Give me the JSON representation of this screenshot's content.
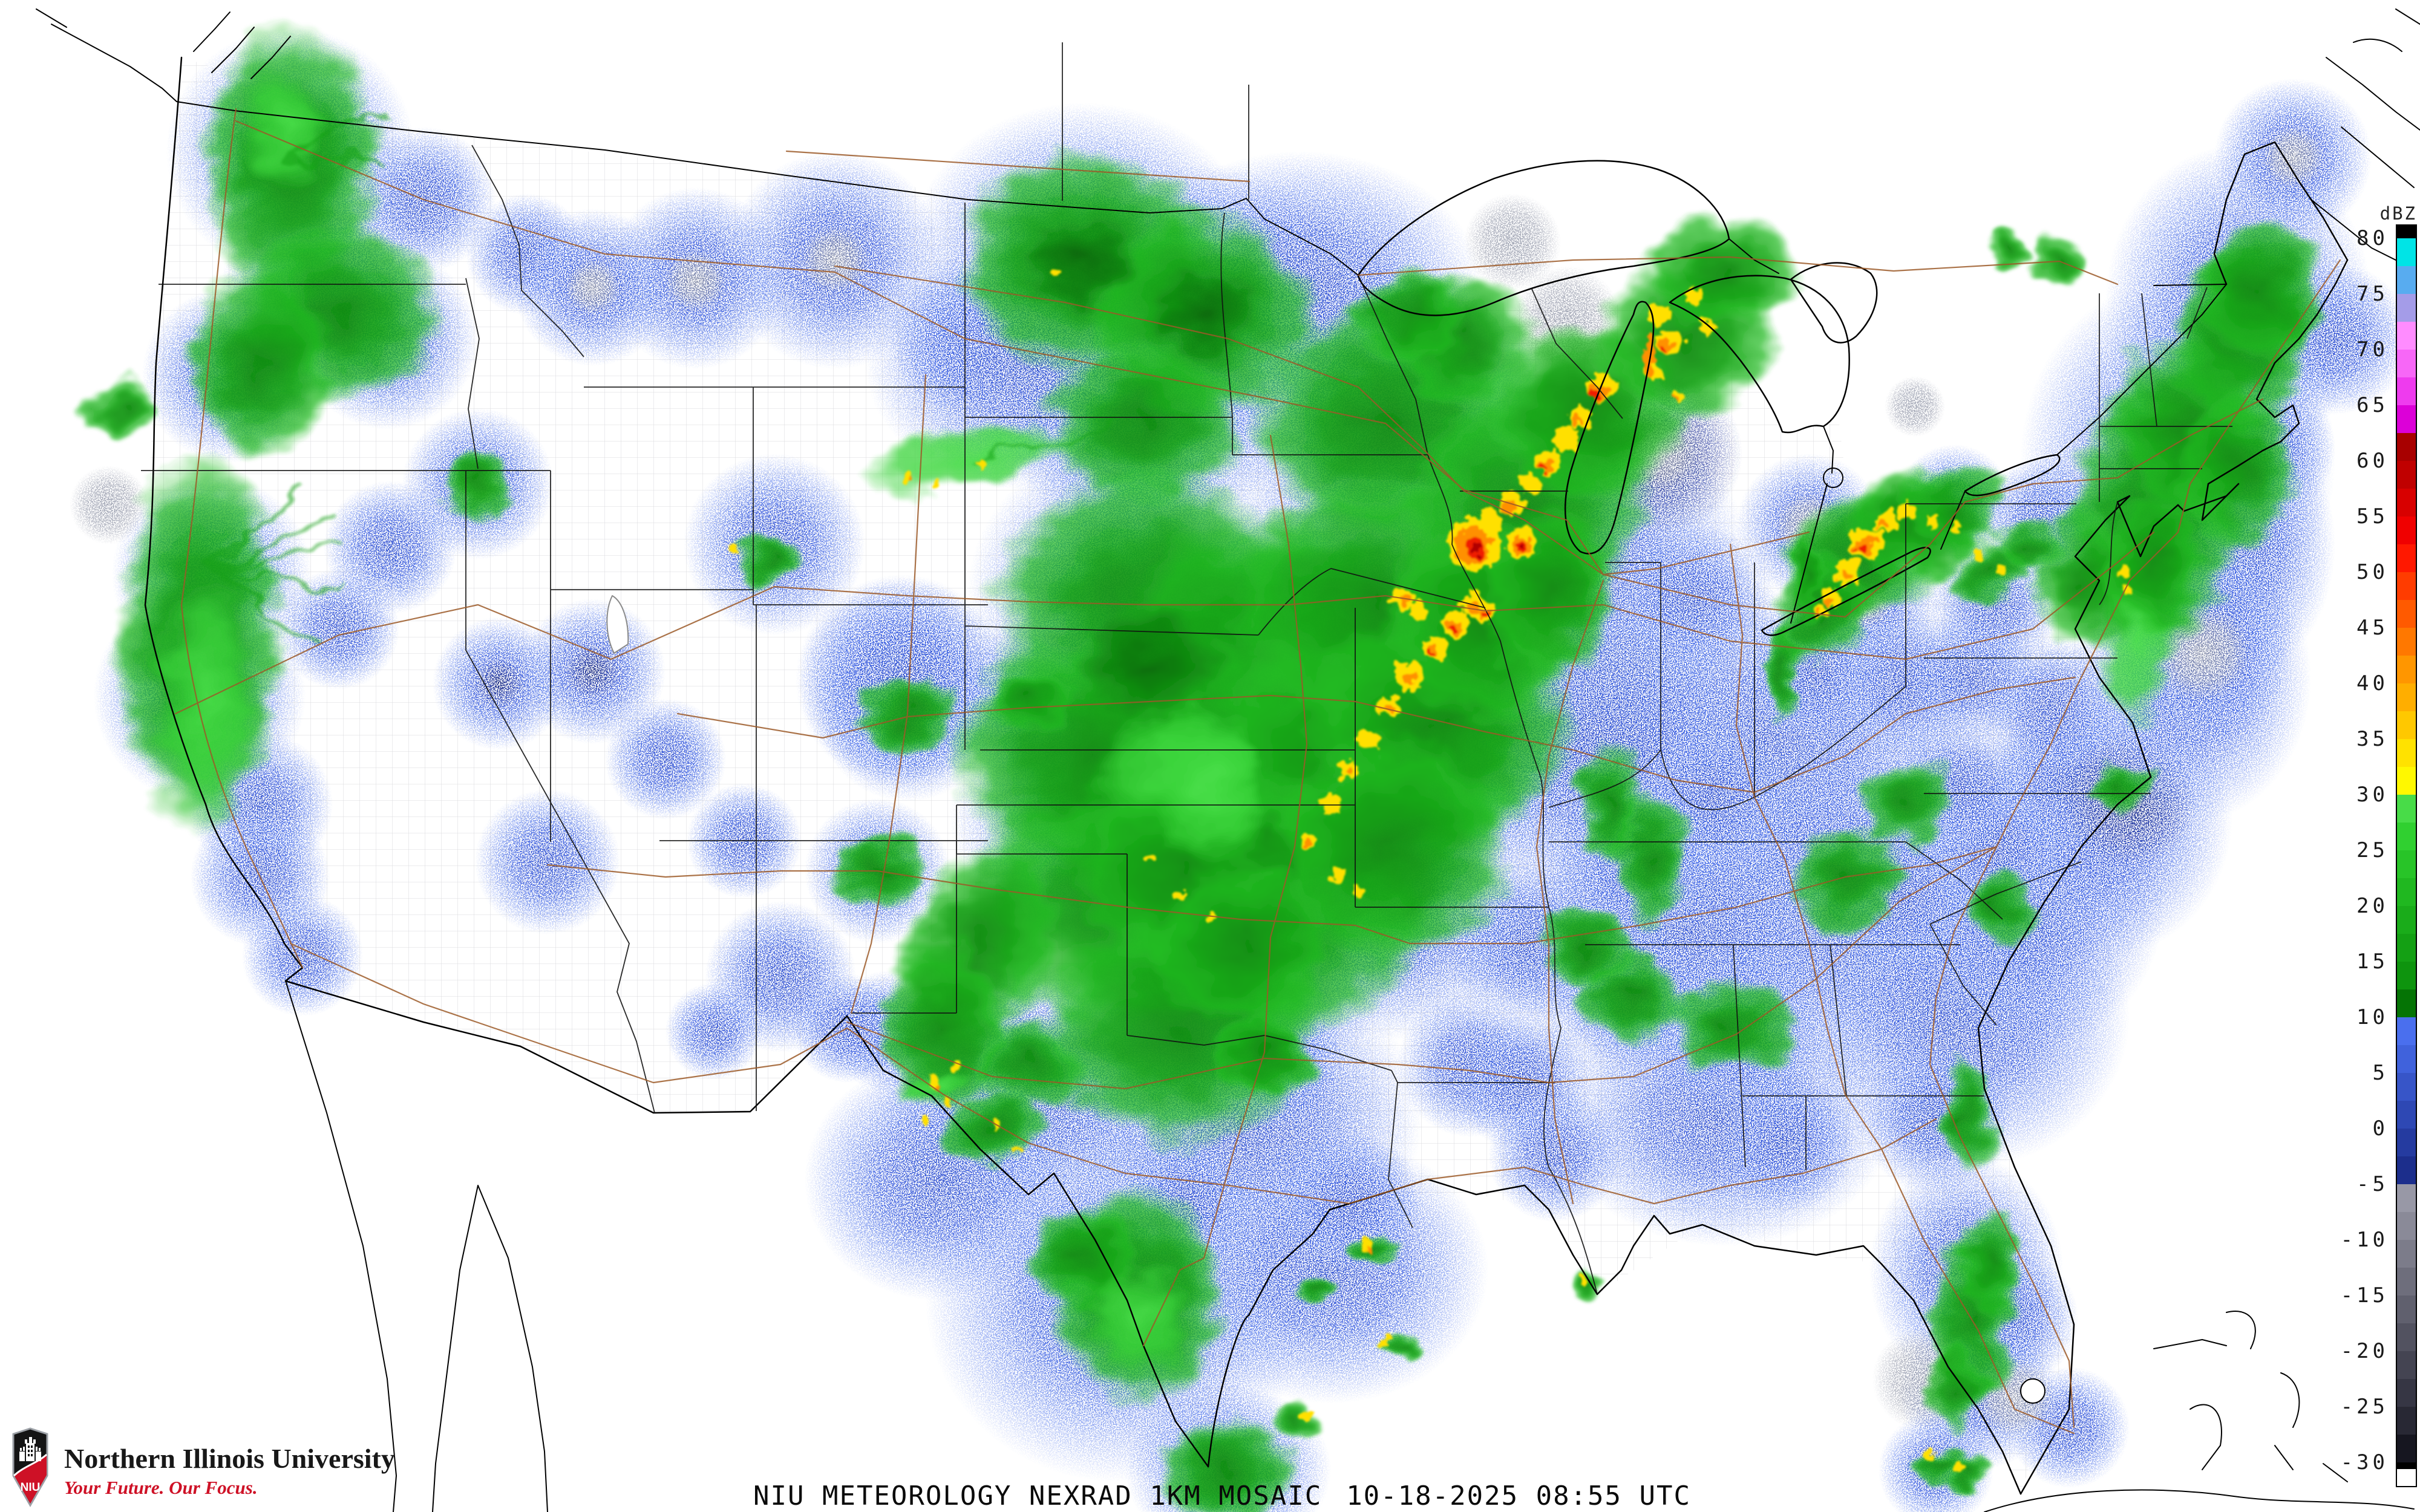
{
  "app": {
    "title": "NIU Meteorology NEXRAD 1KM Mosaic"
  },
  "caption": {
    "product": "NIU METEOROLOGY NEXRAD 1KM MOSAIC",
    "datetime": "10-18-2025 08:55 UTC"
  },
  "branding": {
    "university": "Northern Illinois University",
    "tagline": "Your Future. Our Focus.",
    "monogram": "NIU",
    "brand_red": "#CE1126"
  },
  "colorbar": {
    "unit": "dBZ",
    "ticks": [
      80,
      75,
      70,
      65,
      60,
      55,
      50,
      45,
      40,
      35,
      30,
      25,
      20,
      15,
      10,
      5,
      0,
      -5,
      -10,
      -15,
      -20,
      -25,
      -30
    ],
    "segments": [
      {
        "f": 81.2,
        "t": 80,
        "c": "#000000"
      },
      {
        "f": 80,
        "t": 77.5,
        "c": "#00E4E6"
      },
      {
        "f": 77.5,
        "t": 75,
        "c": "#58ACF0"
      },
      {
        "f": 75,
        "t": 72.5,
        "c": "#A49CE8"
      },
      {
        "f": 72.5,
        "t": 70,
        "c": "#FF8CFF"
      },
      {
        "f": 70,
        "t": 67.5,
        "c": "#F767F7"
      },
      {
        "f": 67.5,
        "t": 65,
        "c": "#EE3BEE"
      },
      {
        "f": 65,
        "t": 62.5,
        "c": "#DC00D8"
      },
      {
        "f": 62.5,
        "t": 60,
        "c": "#A80000"
      },
      {
        "f": 60,
        "t": 57.5,
        "c": "#C00000"
      },
      {
        "f": 57.5,
        "t": 55,
        "c": "#D80000"
      },
      {
        "f": 55,
        "t": 52.5,
        "c": "#F00000"
      },
      {
        "f": 52.5,
        "t": 50,
        "c": "#FF1800"
      },
      {
        "f": 50,
        "t": 47.5,
        "c": "#FF3C00"
      },
      {
        "f": 47.5,
        "t": 45,
        "c": "#FF5A00"
      },
      {
        "f": 45,
        "t": 42.5,
        "c": "#FF7800"
      },
      {
        "f": 42.5,
        "t": 40,
        "c": "#FF9600"
      },
      {
        "f": 40,
        "t": 37.5,
        "c": "#FFAE00"
      },
      {
        "f": 37.5,
        "t": 35,
        "c": "#FFC800"
      },
      {
        "f": 35,
        "t": 32.5,
        "c": "#FFE200"
      },
      {
        "f": 32.5,
        "t": 30,
        "c": "#FFF800"
      },
      {
        "f": 30,
        "t": 27.5,
        "c": "#48DC48"
      },
      {
        "f": 27.5,
        "t": 25,
        "c": "#30D030"
      },
      {
        "f": 25,
        "t": 22.5,
        "c": "#28C428"
      },
      {
        "f": 22.5,
        "t": 20,
        "c": "#20B820"
      },
      {
        "f": 20,
        "t": 17.5,
        "c": "#1AAC1A"
      },
      {
        "f": 17.5,
        "t": 15,
        "c": "#14A014"
      },
      {
        "f": 15,
        "t": 12.5,
        "c": "#0E940E"
      },
      {
        "f": 12.5,
        "t": 10,
        "c": "#057405"
      },
      {
        "f": 10,
        "t": 7.5,
        "c": "#4A6FEE"
      },
      {
        "f": 7.5,
        "t": 5,
        "c": "#4062DC"
      },
      {
        "f": 5,
        "t": 2.5,
        "c": "#3755C8"
      },
      {
        "f": 2.5,
        "t": 0,
        "c": "#2E48B4"
      },
      {
        "f": 0,
        "t": -2.5,
        "c": "#253BA0"
      },
      {
        "f": -2.5,
        "t": -5,
        "c": "#1C2E8C"
      },
      {
        "f": -5,
        "t": -7.5,
        "c": "#9898A6"
      },
      {
        "f": -7.5,
        "t": -10,
        "c": "#8A8A98"
      },
      {
        "f": -10,
        "t": -12.5,
        "c": "#7C7C8A"
      },
      {
        "f": -12.5,
        "t": -15,
        "c": "#6E6E7C"
      },
      {
        "f": -15,
        "t": -17.5,
        "c": "#60606E"
      },
      {
        "f": -17.5,
        "t": -20,
        "c": "#525260"
      },
      {
        "f": -20,
        "t": -22.5,
        "c": "#444452"
      },
      {
        "f": -22.5,
        "t": -25,
        "c": "#363644"
      },
      {
        "f": -25,
        "t": -27.5,
        "c": "#282834"
      },
      {
        "f": -27.5,
        "t": -30,
        "c": "#161620"
      },
      {
        "f": -30,
        "t": -30.6,
        "c": "#000000"
      },
      {
        "f": -30.6,
        "t": -32.1,
        "c": "#FFFFFF"
      }
    ]
  },
  "palette": {
    "clear_air_blue": "#3A5EE0",
    "ground_clutter_gray": "#9096A8",
    "light_rain_green": "#17A317",
    "bright_green": "#3ED43E",
    "heavy_rain_yellow": "#FFE000",
    "intense_orange": "#FF9000",
    "extreme_red": "#F01E00",
    "county_line": "#D2D2D6",
    "state_line": "#111111",
    "highway_brown": "#9C5A28",
    "coastline": "#000000"
  }
}
